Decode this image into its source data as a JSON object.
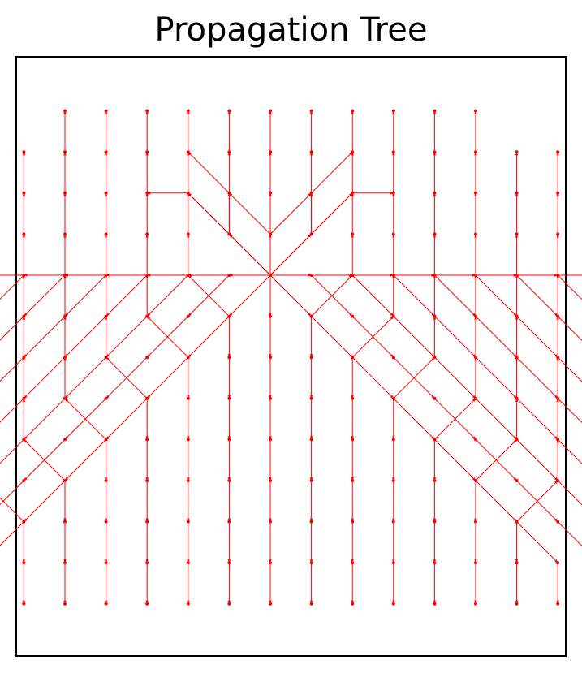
{
  "title": "Propagation Tree",
  "edge_color": "#ff0000",
  "frame_color": "#000000",
  "tree": {
    "root": [
      0,
      5
    ],
    "branches": [
      [
        [
          0,
          5
        ],
        [
          0,
          6
        ],
        [
          0,
          7
        ],
        [
          0,
          8
        ],
        [
          0,
          9
        ]
      ],
      [
        [
          0,
          5
        ],
        [
          0,
          4
        ],
        [
          0,
          3
        ],
        [
          0,
          2
        ],
        [
          0,
          1
        ],
        [
          0,
          0
        ],
        [
          0,
          -1
        ],
        [
          0,
          -2
        ],
        [
          0,
          -3
        ]
      ],
      [
        [
          0,
          5
        ],
        [
          1,
          6
        ],
        [
          1,
          7
        ],
        [
          1,
          8
        ],
        [
          1,
          9
        ]
      ],
      [
        [
          0,
          5
        ],
        [
          -1,
          6
        ],
        [
          -1,
          7
        ],
        [
          -1,
          8
        ],
        [
          -1,
          9
        ]
      ],
      [
        [
          0,
          5
        ],
        [
          1,
          4
        ],
        [
          2,
          5
        ],
        [
          2,
          6
        ],
        [
          2,
          7
        ],
        [
          2,
          8
        ],
        [
          2,
          9
        ]
      ],
      [
        [
          0,
          5
        ],
        [
          -1,
          4
        ],
        [
          -2,
          5
        ],
        [
          -2,
          6
        ],
        [
          -2,
          7
        ],
        [
          -2,
          8
        ],
        [
          -2,
          9
        ]
      ],
      [
        [
          1,
          4
        ],
        [
          1,
          3
        ],
        [
          1,
          2
        ],
        [
          1,
          1
        ],
        [
          1,
          0
        ],
        [
          1,
          -1
        ],
        [
          1,
          -2
        ],
        [
          1,
          -3
        ]
      ],
      [
        [
          -1,
          4
        ],
        [
          -1,
          3
        ],
        [
          -1,
          2
        ],
        [
          -1,
          1
        ],
        [
          -1,
          0
        ],
        [
          -1,
          -1
        ],
        [
          -1,
          -2
        ],
        [
          -1,
          -3
        ]
      ],
      [
        [
          1,
          4
        ],
        [
          2,
          3
        ],
        [
          3,
          4
        ],
        [
          3,
          5
        ],
        [
          3,
          6
        ],
        [
          3,
          7
        ],
        [
          3,
          8
        ],
        [
          3,
          9
        ]
      ],
      [
        [
          -1,
          4
        ],
        [
          -2,
          3
        ],
        [
          -3,
          4
        ],
        [
          -3,
          5
        ],
        [
          -3,
          6
        ],
        [
          -3,
          7
        ],
        [
          -3,
          8
        ],
        [
          -3,
          9
        ]
      ],
      [
        [
          2,
          3
        ],
        [
          2,
          2
        ],
        [
          2,
          1
        ],
        [
          2,
          0
        ],
        [
          2,
          -1
        ],
        [
          2,
          -2
        ],
        [
          2,
          -3
        ]
      ],
      [
        [
          -2,
          3
        ],
        [
          -2,
          2
        ],
        [
          -2,
          1
        ],
        [
          -2,
          0
        ],
        [
          -2,
          -1
        ],
        [
          -2,
          -2
        ],
        [
          -2,
          -3
        ]
      ],
      [
        [
          2,
          3
        ],
        [
          3,
          2
        ],
        [
          4,
          3
        ],
        [
          4,
          4
        ],
        [
          4,
          5
        ],
        [
          4,
          6
        ],
        [
          4,
          7
        ],
        [
          4,
          8
        ],
        [
          4,
          9
        ]
      ],
      [
        [
          -2,
          3
        ],
        [
          -3,
          2
        ],
        [
          -4,
          3
        ],
        [
          -4,
          4
        ],
        [
          -4,
          5
        ],
        [
          -4,
          6
        ],
        [
          -4,
          7
        ],
        [
          -4,
          8
        ],
        [
          -4,
          9
        ]
      ],
      [
        [
          3,
          2
        ],
        [
          3,
          1
        ],
        [
          3,
          0
        ],
        [
          3,
          -1
        ],
        [
          3,
          -2
        ],
        [
          3,
          -3
        ]
      ],
      [
        [
          -3,
          2
        ],
        [
          -3,
          1
        ],
        [
          -3,
          0
        ],
        [
          -3,
          -1
        ],
        [
          -3,
          -2
        ],
        [
          -3,
          -3
        ]
      ],
      [
        [
          3,
          2
        ],
        [
          4,
          1
        ],
        [
          5,
          2
        ],
        [
          5,
          3
        ],
        [
          5,
          4
        ],
        [
          5,
          5
        ],
        [
          5,
          6
        ],
        [
          5,
          7
        ],
        [
          5,
          8
        ],
        [
          5,
          9
        ]
      ],
      [
        [
          -3,
          2
        ],
        [
          -4,
          1
        ],
        [
          -5,
          2
        ],
        [
          -5,
          3
        ],
        [
          -5,
          4
        ],
        [
          -5,
          5
        ],
        [
          -5,
          6
        ],
        [
          -5,
          7
        ],
        [
          -5,
          8
        ],
        [
          -5,
          9
        ]
      ],
      [
        [
          4,
          1
        ],
        [
          4,
          0
        ],
        [
          4,
          -1
        ],
        [
          4,
          -2
        ],
        [
          4,
          -3
        ]
      ],
      [
        [
          -4,
          1
        ],
        [
          -4,
          0
        ],
        [
          -4,
          -1
        ],
        [
          -4,
          -2
        ],
        [
          -4,
          -3
        ]
      ],
      [
        [
          4,
          1
        ],
        [
          5,
          0
        ],
        [
          6,
          1
        ],
        [
          6,
          2
        ],
        [
          6,
          3
        ],
        [
          6,
          4
        ],
        [
          6,
          5
        ],
        [
          6,
          6
        ],
        [
          6,
          7
        ],
        [
          6,
          8
        ]
      ],
      [
        [
          -4,
          1
        ],
        [
          -5,
          0
        ],
        [
          -6,
          1
        ],
        [
          -6,
          2
        ],
        [
          -6,
          3
        ],
        [
          -6,
          4
        ],
        [
          -6,
          5
        ],
        [
          -6,
          6
        ],
        [
          -6,
          7
        ],
        [
          -6,
          8
        ]
      ],
      [
        [
          5,
          0
        ],
        [
          5,
          -1
        ],
        [
          5,
          -2
        ],
        [
          5,
          -3
        ]
      ],
      [
        [
          -5,
          0
        ],
        [
          -5,
          -1
        ],
        [
          -5,
          -2
        ],
        [
          -5,
          -3
        ]
      ],
      [
        [
          5,
          0
        ],
        [
          6,
          -1
        ],
        [
          7,
          0
        ],
        [
          7,
          1
        ],
        [
          7,
          2
        ],
        [
          7,
          3
        ],
        [
          7,
          4
        ],
        [
          7,
          5
        ],
        [
          7,
          6
        ],
        [
          7,
          7
        ],
        [
          7,
          8
        ]
      ],
      [
        [
          -5,
          0
        ],
        [
          -6,
          -1
        ],
        [
          -7,
          0
        ],
        [
          -7,
          1
        ],
        [
          -7,
          2
        ],
        [
          -7,
          3
        ],
        [
          -7,
          4
        ],
        [
          -7,
          5
        ],
        [
          -7,
          6
        ],
        [
          -7,
          7
        ],
        [
          -7,
          8
        ]
      ],
      [
        [
          6,
          -1
        ],
        [
          6,
          -2
        ],
        [
          6,
          -3
        ]
      ],
      [
        [
          -6,
          -1
        ],
        [
          -6,
          -2
        ],
        [
          -6,
          -3
        ]
      ],
      [
        [
          6,
          -1
        ],
        [
          7,
          -2
        ],
        [
          7,
          -3
        ]
      ],
      [
        [
          -6,
          -1
        ],
        [
          -7,
          -2
        ],
        [
          -7,
          -3
        ]
      ],
      [
        [
          0,
          5
        ],
        [
          -1,
          5
        ],
        [
          -2,
          4
        ],
        [
          -3,
          3
        ],
        [
          -4,
          2
        ],
        [
          -5,
          1
        ],
        [
          -6,
          0
        ],
        [
          -7,
          -1
        ],
        [
          -8,
          -2
        ],
        [
          -9,
          -3
        ],
        [
          -10,
          -4
        ],
        [
          -10,
          -3
        ]
      ],
      [
        [
          -1,
          5
        ],
        [
          -2,
          5
        ],
        [
          -3,
          4
        ],
        [
          -4,
          3
        ],
        [
          -5,
          2
        ],
        [
          -6,
          1
        ],
        [
          -7,
          0
        ],
        [
          -8,
          -1
        ],
        [
          -9,
          -2
        ],
        [
          -10,
          -3
        ]
      ],
      [
        [
          -2,
          5
        ],
        [
          -3,
          5
        ],
        [
          -4,
          4
        ],
        [
          -5,
          3
        ],
        [
          -6,
          2
        ],
        [
          -7,
          1
        ],
        [
          -8,
          0
        ],
        [
          -9,
          -1
        ],
        [
          -10,
          -2
        ]
      ],
      [
        [
          -3,
          5
        ],
        [
          -4,
          5
        ],
        [
          -5,
          4
        ],
        [
          -6,
          3
        ],
        [
          -7,
          2
        ],
        [
          -8,
          1
        ],
        [
          -9,
          0
        ],
        [
          -10,
          -1
        ],
        [
          -11,
          -2
        ]
      ],
      [
        [
          -4,
          5
        ],
        [
          -5,
          5
        ],
        [
          -6,
          4
        ],
        [
          -7,
          3
        ],
        [
          -8,
          2
        ],
        [
          -9,
          1
        ],
        [
          -10,
          0
        ],
        [
          -11,
          -1
        ]
      ],
      [
        [
          -5,
          5
        ],
        [
          -6,
          5
        ],
        [
          -7,
          4
        ],
        [
          -8,
          3
        ],
        [
          -9,
          2
        ],
        [
          -10,
          1
        ],
        [
          -11,
          0
        ],
        [
          -12,
          -1
        ]
      ],
      [
        [
          -6,
          5
        ],
        [
          -7,
          5
        ],
        [
          -8,
          4
        ],
        [
          -9,
          3
        ],
        [
          -10,
          2
        ],
        [
          -11,
          1
        ],
        [
          -12,
          0
        ]
      ],
      [
        [
          -7,
          5
        ],
        [
          -8,
          5
        ],
        [
          -9,
          4
        ],
        [
          -10,
          3
        ],
        [
          -11,
          2
        ],
        [
          -12,
          1
        ]
      ],
      [
        [
          0,
          5
        ],
        [
          1,
          5
        ],
        [
          2,
          4
        ],
        [
          3,
          3
        ],
        [
          4,
          2
        ],
        [
          5,
          1
        ],
        [
          6,
          0
        ],
        [
          7,
          -1
        ],
        [
          8,
          -2
        ],
        [
          9,
          -3
        ]
      ],
      [
        [
          1,
          5
        ],
        [
          2,
          5
        ],
        [
          3,
          4
        ],
        [
          4,
          3
        ],
        [
          5,
          2
        ],
        [
          6,
          1
        ],
        [
          7,
          0
        ],
        [
          8,
          -1
        ],
        [
          9,
          -2
        ]
      ],
      [
        [
          2,
          5
        ],
        [
          3,
          5
        ],
        [
          4,
          4
        ],
        [
          5,
          3
        ],
        [
          6,
          2
        ],
        [
          7,
          1
        ],
        [
          8,
          0
        ],
        [
          9,
          -1
        ]
      ],
      [
        [
          3,
          5
        ],
        [
          4,
          5
        ],
        [
          5,
          4
        ],
        [
          6,
          3
        ],
        [
          7,
          2
        ],
        [
          8,
          1
        ],
        [
          9,
          0
        ],
        [
          10,
          -1
        ]
      ],
      [
        [
          4,
          5
        ],
        [
          5,
          5
        ],
        [
          6,
          4
        ],
        [
          7,
          3
        ],
        [
          8,
          2
        ],
        [
          9,
          1
        ],
        [
          10,
          0
        ],
        [
          11,
          -1
        ]
      ],
      [
        [
          5,
          5
        ],
        [
          6,
          5
        ],
        [
          7,
          4
        ],
        [
          8,
          3
        ],
        [
          9,
          2
        ],
        [
          10,
          1
        ],
        [
          11,
          0
        ],
        [
          12,
          1
        ]
      ],
      [
        [
          6,
          5
        ],
        [
          7,
          5
        ],
        [
          8,
          4
        ],
        [
          9,
          3
        ],
        [
          10,
          2
        ],
        [
          11,
          1
        ],
        [
          12,
          0
        ]
      ],
      [
        [
          7,
          5
        ],
        [
          8,
          5
        ],
        [
          9,
          4
        ],
        [
          10,
          3
        ],
        [
          11,
          2
        ]
      ],
      [
        [
          0,
          5
        ],
        [
          -1,
          6
        ],
        [
          -2,
          7
        ],
        [
          -3,
          7
        ]
      ],
      [
        [
          -1,
          6
        ],
        [
          -1,
          7
        ],
        [
          -2,
          8
        ]
      ],
      [
        [
          0,
          5
        ],
        [
          1,
          6
        ],
        [
          2,
          7
        ],
        [
          3,
          7
        ]
      ],
      [
        [
          1,
          6
        ],
        [
          1,
          7
        ],
        [
          2,
          8
        ]
      ],
      [
        [
          0,
          6
        ],
        [
          1,
          7
        ]
      ],
      [
        [
          0,
          6
        ],
        [
          -1,
          7
        ]
      ],
      [
        [
          1,
          6
        ],
        [
          2,
          7
        ]
      ],
      [
        [
          -1,
          6
        ],
        [
          -2,
          7
        ]
      ]
    ]
  }
}
